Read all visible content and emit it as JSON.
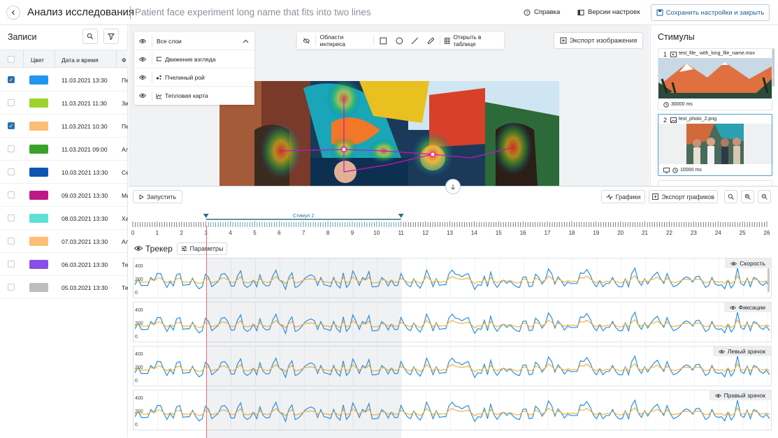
{
  "header": {
    "back_icon": "chevron-left-icon",
    "title": "Анализ исследования",
    "subtitle": "Patient face experiment long name that fits into two lines",
    "help_label": "Справка",
    "versions_label": "Версии настроек",
    "save_label": "Сохранить настройки и закрыть"
  },
  "records": {
    "title": "Записи",
    "columns": [
      "Цвет",
      "Дата и время",
      "Ф"
    ],
    "rows": [
      {
        "checked": true,
        "color": "#1f97f0",
        "date": "11.03.2021  13:30",
        "trunc": "Пе"
      },
      {
        "checked": false,
        "color": "#9ed32a",
        "date": "11.03.2021  11:30",
        "trunc": "Зи"
      },
      {
        "checked": true,
        "color": "#fdbd74",
        "date": "11.03.2021  10:30",
        "trunc": "Пе"
      },
      {
        "checked": false,
        "color": "#3aa22a",
        "date": "11.03.2021  09:00",
        "trunc": "Ал"
      },
      {
        "checked": false,
        "color": "#0c56b0",
        "date": "10.03.2021  13:30",
        "trunc": "Се"
      },
      {
        "checked": false,
        "color": "#c01888",
        "date": "09.03.2021  13:30",
        "trunc": "Ми"
      },
      {
        "checked": false,
        "color": "#5ee0d8",
        "date": "08.03.2021  13:30",
        "trunc": "Ха"
      },
      {
        "checked": false,
        "color": "#fdbd74",
        "date": "07.03.2021  13:30",
        "trunc": "Ал"
      },
      {
        "checked": false,
        "color": "#8a4ee8",
        "date": "06.03.2021  13:30",
        "trunc": "Те"
      },
      {
        "checked": false,
        "color": "#bdbdbd",
        "date": "05.03.2021  13:30",
        "trunc": "Те"
      }
    ]
  },
  "layers": {
    "all": "Все слои",
    "items": [
      "Движение взгляда",
      "Пчелиный рой",
      "Тепловая карта"
    ]
  },
  "toolbar": {
    "aoi_label": "Области интереса",
    "open_table_label": "Открыть в таблице",
    "export_image_label": "Экспорт изображения"
  },
  "stimuli": {
    "title": "Стимулы",
    "items": [
      {
        "num": "1",
        "name": "test_file_ with_long_file_name.mov",
        "duration": "30000 ms"
      },
      {
        "num": "2",
        "name": "test_photo_2.png",
        "duration": "10000 ms"
      }
    ]
  },
  "bottom": {
    "run_label": "Запустить",
    "graphs_label": "Графики",
    "export_graphs_label": "Экспорт графиков",
    "stimulus_label": "Стимул 2",
    "tracker_label": "Трекер",
    "params_label": "Параметры",
    "timeline_max": 26,
    "stim_range": [
      3,
      11
    ],
    "playhead": 3,
    "charts": [
      {
        "label": "Скорость",
        "yticks": [
          "400",
          "200",
          "0"
        ]
      },
      {
        "label": "Фиксации",
        "yticks": [
          "400",
          "200",
          "0"
        ]
      },
      {
        "label": "Левый зрачок",
        "yticks": [
          "400",
          "200",
          "0"
        ]
      },
      {
        "label": "Правый зрачок",
        "yticks": [
          "400",
          "200",
          "0"
        ]
      }
    ],
    "series_colors": {
      "blue": "#2b8fe0",
      "orange": "#f5b33c"
    },
    "series_blue": [
      130,
      210,
      120,
      120,
      120,
      240,
      190,
      300,
      300,
      180,
      90,
      180,
      110,
      280,
      300,
      120,
      130,
      130,
      230,
      130,
      70,
      100,
      290,
      240,
      100,
      140,
      180,
      290,
      300,
      240,
      110,
      110,
      260,
      340,
      130,
      90,
      120,
      200,
      100,
      280,
      150,
      110,
      120,
      260,
      350,
      200,
      170,
      60,
      240,
      310,
      90,
      110,
      160,
      230,
      260,
      280,
      250,
      120,
      240,
      130,
      120,
      100,
      240,
      130,
      80,
      310,
      90,
      150,
      340,
      240,
      120,
      240,
      210,
      330,
      100,
      100,
      110,
      240,
      200,
      110,
      200,
      120,
      120,
      300,
      200,
      130,
      100,
      220,
      130,
      80,
      180,
      350,
      240,
      100,
      220,
      120,
      130,
      130,
      300,
      350,
      290,
      280,
      250,
      280,
      300,
      170,
      60,
      130,
      120,
      260,
      100,
      320,
      160,
      90,
      160,
      200,
      150,
      190,
      140,
      100,
      90,
      240,
      250,
      100,
      110,
      290,
      240,
      140,
      200,
      370,
      300,
      140,
      250,
      190,
      110,
      170,
      150,
      150,
      150,
      310,
      300,
      360,
      280,
      160,
      100,
      190,
      100,
      150,
      150,
      240,
      150,
      100,
      100,
      220,
      100,
      300,
      380,
      190,
      120,
      220,
      140,
      220,
      280,
      320,
      220,
      150,
      300,
      180,
      100,
      120,
      160,
      220,
      250,
      230,
      170,
      250,
      260,
      180,
      90,
      120,
      240,
      140,
      120,
      130,
      70,
      200,
      80,
      150,
      380,
      150,
      120,
      230,
      100,
      240,
      220,
      150,
      120,
      170,
      100
    ],
    "series_orange": [
      170,
      200,
      170,
      170,
      170,
      210,
      190,
      230,
      230,
      190,
      160,
      190,
      170,
      220,
      230,
      170,
      170,
      170,
      210,
      170,
      150,
      160,
      230,
      210,
      160,
      175,
      190,
      230,
      230,
      210,
      165,
      165,
      215,
      250,
      170,
      160,
      170,
      200,
      160,
      220,
      180,
      165,
      170,
      215,
      255,
      200,
      190,
      145,
      210,
      240,
      160,
      165,
      185,
      210,
      215,
      220,
      210,
      170,
      210,
      175,
      170,
      160,
      210,
      175,
      150,
      240,
      160,
      180,
      250,
      210,
      170,
      210,
      200,
      245,
      160,
      160,
      165,
      210,
      200,
      165,
      200,
      170,
      170,
      230,
      200,
      175,
      160,
      205,
      175,
      150,
      190,
      255,
      210,
      160,
      205,
      170,
      175,
      175,
      230,
      255,
      230,
      220,
      210,
      220,
      230,
      190,
      145,
      175,
      170,
      215,
      160,
      240,
      185,
      160,
      185,
      200,
      180,
      195,
      175,
      160,
      160,
      210,
      215,
      160,
      165,
      230,
      210,
      175,
      200,
      260,
      230,
      175,
      215,
      195,
      165,
      190,
      180,
      180,
      180,
      240,
      230,
      260,
      220,
      185,
      160,
      195,
      160,
      180,
      180,
      210,
      180,
      160,
      160,
      205,
      160,
      230,
      265,
      195,
      170,
      205,
      175,
      205,
      220,
      245,
      205,
      180,
      230,
      190,
      160,
      170,
      185,
      205,
      215,
      210,
      190,
      215,
      215,
      190,
      160,
      170,
      210,
      175,
      170,
      175,
      150,
      200,
      150,
      180,
      265,
      180,
      170,
      210,
      160,
      210,
      205,
      180,
      170,
      190,
      160
    ]
  }
}
